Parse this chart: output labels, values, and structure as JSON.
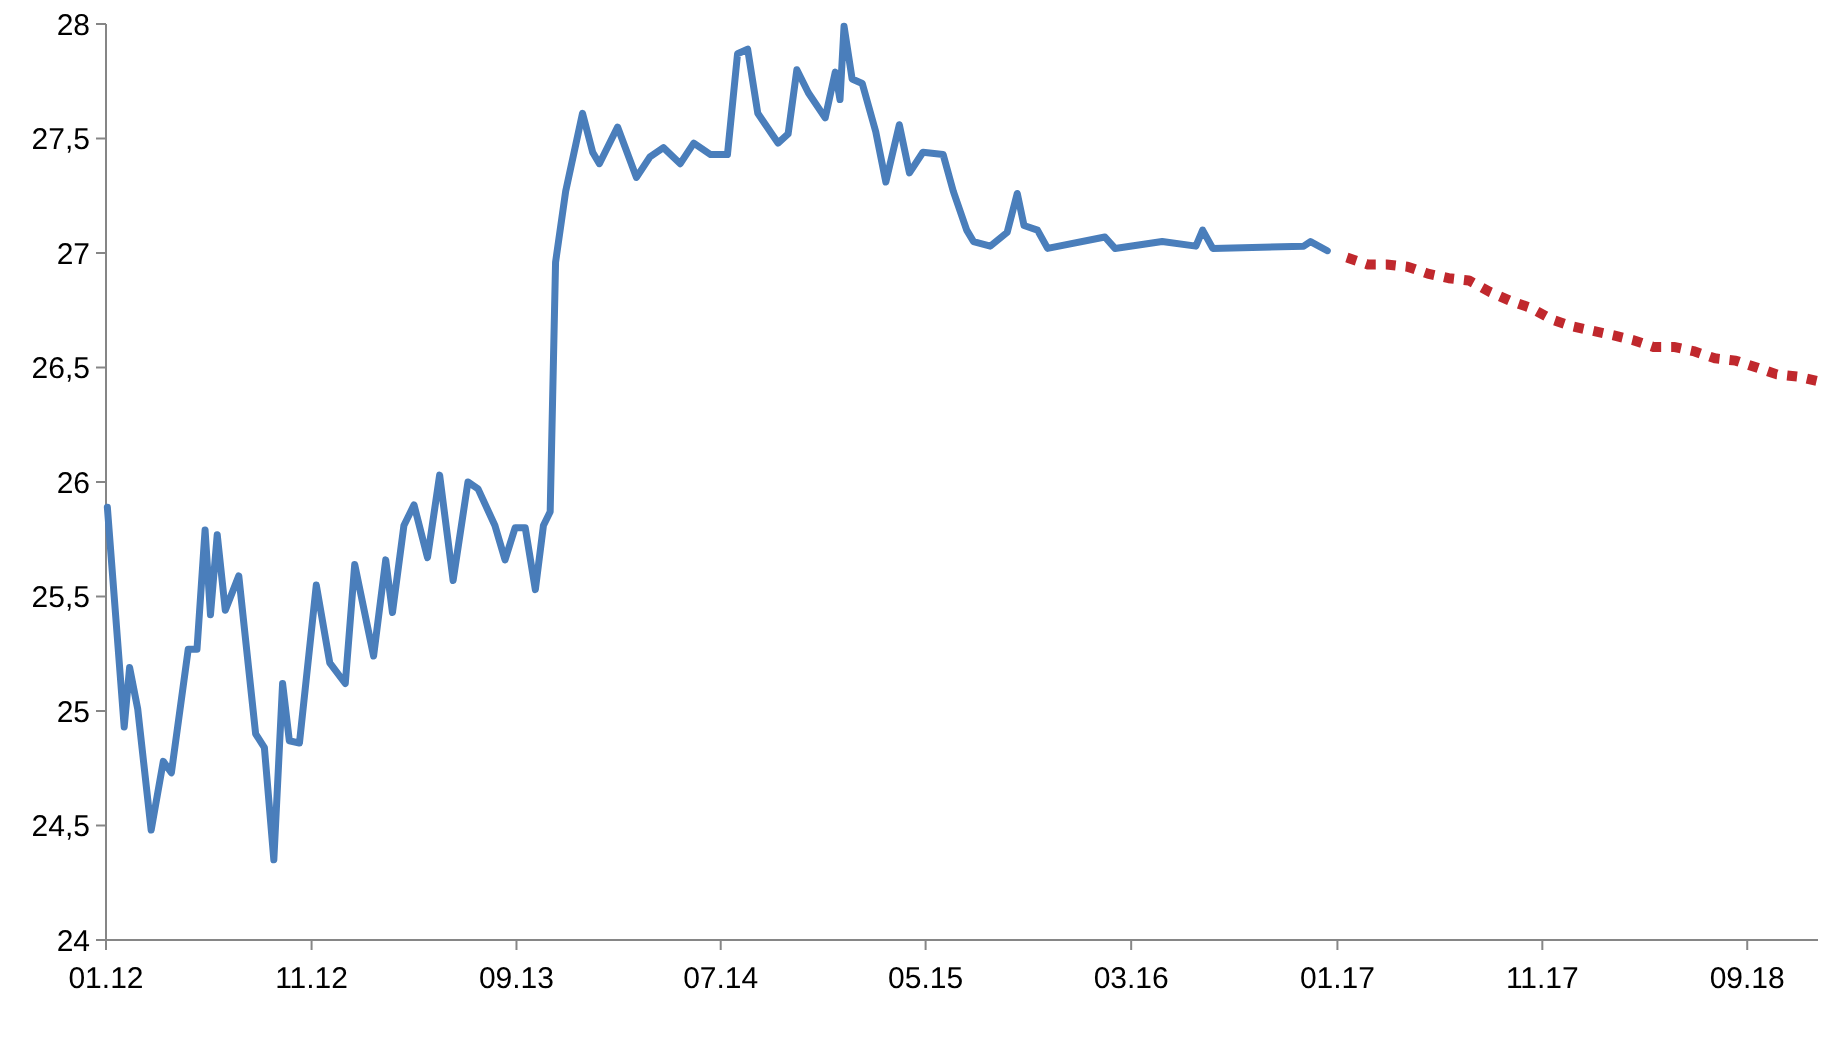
{
  "chart_data": {
    "type": "line",
    "xlim": [
      "2012-01-01",
      "2018-12-15"
    ],
    "xticks": [
      {
        "value": "2012-01-01",
        "label": "01.12"
      },
      {
        "value": "2012-11-01",
        "label": "11.12"
      },
      {
        "value": "2013-09-01",
        "label": "09.13"
      },
      {
        "value": "2014-07-01",
        "label": "07.14"
      },
      {
        "value": "2015-05-01",
        "label": "05.15"
      },
      {
        "value": "2016-03-01",
        "label": "03.16"
      },
      {
        "value": "2017-01-01",
        "label": "01.17"
      },
      {
        "value": "2017-11-01",
        "label": "11.17"
      },
      {
        "value": "2018-09-01",
        "label": "09.18"
      }
    ],
    "ylim": [
      24,
      28
    ],
    "yticks": [
      24,
      {
        "value": 24.5,
        "label": "24,5"
      },
      25,
      {
        "value": 25.5,
        "label": "25,5"
      },
      26,
      {
        "value": 26.5,
        "label": "26,5"
      },
      27,
      {
        "value": 27.5,
        "label": "27,5"
      },
      28
    ],
    "grid": false,
    "series": [
      {
        "color": "#4a7ebb",
        "line_style": "solid",
        "x": [
          "2012-01-03",
          "2012-01-28",
          "2012-02-05",
          "2012-02-17",
          "2012-03-08",
          "2012-03-26",
          "2012-04-07",
          "2012-05-02",
          "2012-05-15",
          "2012-05-27",
          "2012-06-04",
          "2012-06-14",
          "2012-06-26",
          "2012-07-16",
          "2012-08-10",
          "2012-08-23",
          "2012-09-06",
          "2012-09-19",
          "2012-09-29",
          "2012-10-14",
          "2012-11-08",
          "2012-11-28",
          "2012-12-21",
          "2013-01-04",
          "2013-02-01",
          "2013-02-19",
          "2013-03-01",
          "2013-03-18",
          "2013-04-02",
          "2013-04-22",
          "2013-05-10",
          "2013-05-30",
          "2013-06-21",
          "2013-07-06",
          "2013-07-31",
          "2013-08-15",
          "2013-08-30",
          "2013-09-14",
          "2013-09-29",
          "2013-10-11",
          "2013-10-21",
          "2013-10-29",
          "2013-11-13",
          "2013-12-08",
          "2013-12-23",
          "2014-01-02",
          "2014-01-29",
          "2014-02-26",
          "2014-03-18",
          "2014-04-07",
          "2014-05-02",
          "2014-05-22",
          "2014-06-16",
          "2014-07-11",
          "2014-07-26",
          "2014-08-10",
          "2014-08-25",
          "2014-09-24",
          "2014-10-09",
          "2014-10-22",
          "2014-11-08",
          "2014-12-03",
          "2014-12-18",
          "2014-12-25",
          "2014-12-31",
          "2015-01-12",
          "2015-01-27",
          "2015-02-16",
          "2015-03-03",
          "2015-03-23",
          "2015-04-07",
          "2015-04-27",
          "2015-05-27",
          "2015-06-11",
          "2015-07-01",
          "2015-07-11",
          "2015-08-05",
          "2015-08-30",
          "2015-09-14",
          "2015-09-24",
          "2015-10-14",
          "2015-10-29",
          "2016-01-22",
          "2016-02-06",
          "2016-04-16",
          "2016-06-05",
          "2016-06-15",
          "2016-06-30",
          "2016-11-12",
          "2016-11-22",
          "2016-12-17"
        ],
        "values": [
          25.89,
          24.93,
          25.19,
          25.01,
          24.48,
          24.78,
          24.73,
          25.27,
          25.27,
          25.79,
          25.42,
          25.77,
          25.44,
          25.59,
          24.9,
          24.84,
          24.35,
          25.12,
          24.87,
          24.86,
          25.55,
          25.21,
          25.12,
          25.64,
          25.24,
          25.66,
          25.43,
          25.81,
          25.9,
          25.67,
          26.03,
          25.57,
          26,
          25.97,
          25.81,
          25.66,
          25.8,
          25.8,
          25.53,
          25.81,
          25.87,
          26.96,
          27.27,
          27.61,
          27.44,
          27.39,
          27.55,
          27.33,
          27.42,
          27.46,
          27.39,
          27.48,
          27.43,
          27.43,
          27.87,
          27.89,
          27.61,
          27.48,
          27.52,
          27.8,
          27.7,
          27.59,
          27.79,
          27.67,
          27.99,
          27.76,
          27.74,
          27.53,
          27.31,
          27.56,
          27.35,
          27.44,
          27.43,
          27.27,
          27.1,
          27.05,
          27.03,
          27.09,
          27.26,
          27.12,
          27.1,
          27.02,
          27.07,
          27.02,
          27.05,
          27.03,
          27.1,
          27.02,
          27.03,
          27.05,
          27.01
        ]
      },
      {
        "color": "#c0282d",
        "line_style": "dotted",
        "x": [
          "2017-01-15",
          "2017-02-15",
          "2017-03-15",
          "2017-04-15",
          "2017-05-15",
          "2017-06-15",
          "2017-07-15",
          "2017-08-15",
          "2017-09-15",
          "2017-10-15",
          "2017-11-15",
          "2017-12-15",
          "2018-01-15",
          "2018-02-15",
          "2018-03-15",
          "2018-04-15",
          "2018-05-15",
          "2018-06-15",
          "2018-07-15",
          "2018-08-15",
          "2018-09-15",
          "2018-10-15",
          "2018-11-15",
          "2018-12-15"
        ],
        "values": [
          26.98,
          26.95,
          26.95,
          26.94,
          26.91,
          26.89,
          26.88,
          26.83,
          26.79,
          26.76,
          26.71,
          26.68,
          26.66,
          26.64,
          26.62,
          26.59,
          26.59,
          26.57,
          26.54,
          26.53,
          26.5,
          26.47,
          26.46,
          26.44
        ]
      }
    ]
  }
}
